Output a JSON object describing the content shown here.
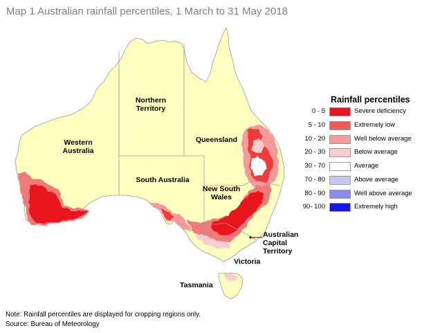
{
  "title": "Map 1 Australian rainfall percentiles, 1 March to 31 May 2018",
  "regions": {
    "western_australia": "Western Australia",
    "northern_territory": "Northern Territory",
    "queensland": "Queensland",
    "south_australia": "South Australia",
    "new_south_wales": "New South Wales",
    "act": "Australian Capital Territory",
    "victoria": "Victoria",
    "tasmania": "Tasmania"
  },
  "legend": {
    "title": "Rainfall percentiles",
    "items": [
      {
        "range": "0 - 5",
        "label": "Severe deficiency",
        "color": "#e8141d"
      },
      {
        "range": "5 - 10",
        "label": "Extremely low",
        "color": "#ee5a5a"
      },
      {
        "range": "10 - 20",
        "label": "Well below average",
        "color": "#f39a9a"
      },
      {
        "range": "20 - 30",
        "label": "Below average",
        "color": "#f8cdcd"
      },
      {
        "range": "30 - 70",
        "label": "Average",
        "color": "#ffffff"
      },
      {
        "range": "70 - 80",
        "label": "Above average",
        "color": "#c7c7f2"
      },
      {
        "range": "80 - 90",
        "label": "Well above average",
        "color": "#8a8aee"
      },
      {
        "range": "90- 100",
        "label": "Extremely high",
        "color": "#1414ee"
      }
    ]
  },
  "colors": {
    "land": "#ffffc0",
    "border": "#a0a0a0",
    "title_text": "#7f7f7f"
  },
  "notes": {
    "note": "Note: Rainfall percentiles are displayed for cropping regions only.",
    "source": "Source: Bureau of Meteorology"
  }
}
